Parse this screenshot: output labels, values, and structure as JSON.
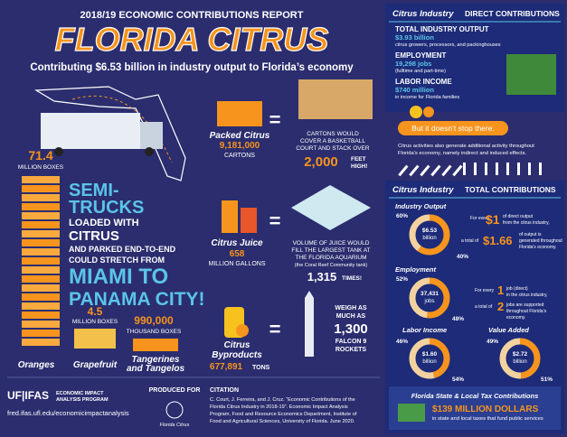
{
  "header": {
    "report": "2018/19 ECONOMIC CONTRIBUTIONS REPORT",
    "title": "FLORIDA CITRUS",
    "subtitle": "Contributing $6.53 billion in industry output to Florida’s economy"
  },
  "production": {
    "oranges": {
      "amount": "71.4",
      "unit": "MILLION BOXES",
      "label": "Oranges"
    },
    "trucks": [
      "SEMI-",
      "TRUCKS",
      "LOADED WITH",
      "CITRUS",
      "AND PARKED END-TO-END",
      "COULD STRETCH FROM",
      "MIAMI TO",
      "PANAMA CITY!"
    ],
    "grapefruit": {
      "amount": "4.5",
      "unit": "MILLION BOXES",
      "label": "Grapefruit"
    },
    "tangerines": {
      "amount": "990,000",
      "unit": "THOUSAND BOXES",
      "label": [
        "Tangerines",
        "and Tangelos"
      ]
    }
  },
  "products": {
    "packed": {
      "label": "Packed Citrus",
      "amount": "9,181,000",
      "unit": "CARTONS",
      "compare": [
        "CARTONS WOULD",
        "COVER A BASKETBALL",
        "COURT AND STACK OVER"
      ],
      "big": "2,000",
      "after": [
        "FEET",
        "HIGH!"
      ]
    },
    "juice": {
      "label": "Citrus Juice",
      "amount": "658",
      "unit": "MILLION GALLONS",
      "compare": [
        "VOLUME OF JUICE WOULD",
        "FILL THE LARGEST TANK AT",
        "THE FLORIDA AQUARIUM",
        "(the Coral Reef Community tank)"
      ],
      "big": "1,315",
      "after": "TIMES!"
    },
    "byproducts": {
      "label": [
        "Citrus",
        "Byproducts"
      ],
      "amount": "677,891",
      "unit": "TONS",
      "compare": [
        "WEIGH AS",
        "MUCH AS"
      ],
      "big": "1,300",
      "after": [
        "FALCON 9",
        "ROCKETS"
      ]
    },
    "equals": "="
  },
  "footer": {
    "logo": "UF|IFAS",
    "program": [
      "ECONOMIC IMPACT",
      "ANALYSIS PROGRAM"
    ],
    "url": "fred.ifas.ufl.edu/economicimpactanalysis",
    "produced_for": "PRODUCED FOR",
    "partner": "Florida Citrus",
    "citation_title": "CITATION",
    "citation": [
      "C. Court, J. Ferreira, and J. Cruz. “Economic Contributions of the",
      "Florida Citrus Industry in 2018-19”. Economic Impact Analysis",
      "Program, Food and Resource Economics Department, Institute of",
      "Food and Agricultural Sciences, University of Florida. June 2020."
    ]
  },
  "direct": {
    "title_a": "Citrus Industry",
    "title_b": "DIRECT CONTRIBUTIONS",
    "items": [
      {
        "label": "TOTAL INDUSTRY OUTPUT",
        "value": "$3.93 billion",
        "note": "citrus growers, processors, and packinghouses"
      },
      {
        "label": "EMPLOYMENT",
        "value": "19,298 jobs",
        "note": "(fulltime and part-time)"
      },
      {
        "label": "LABOR INCOME",
        "value": "$740 million",
        "note": "in income for Florida families"
      }
    ],
    "more": "But it doesn’t stop there.",
    "more_text": [
      "Citrus activities also generate additional activity throughout",
      "Florida’s economy, namely indirect and induced effects."
    ]
  },
  "total": {
    "title_a": "Citrus Industry",
    "title_b": "TOTAL CONTRIBUTIONS",
    "industry_output": {
      "label": "Industry Output",
      "center": [
        "$6.53",
        "billion"
      ],
      "shares": [
        {
          "value": 60,
          "label": "60%"
        },
        {
          "value": 40,
          "label": "40%"
        }
      ],
      "explain": {
        "a": "For every",
        "b": "$1",
        "c": [
          "of direct output",
          "from the citrus industry,"
        ],
        "d": "a total of",
        "e": "$1.66",
        "f": [
          "of output is",
          "generated throughout",
          "Florida’s economy."
        ]
      }
    },
    "employment": {
      "label": "Employment",
      "center": [
        "37,431",
        "jobs"
      ],
      "shares": [
        {
          "value": 52,
          "label": "52%"
        },
        {
          "value": 48,
          "label": "48%"
        }
      ],
      "explain": {
        "a": "For every",
        "b": "1",
        "c": [
          "job (direct)",
          "in the citrus industry,"
        ],
        "d": "a total of",
        "e": "2",
        "f": [
          "jobs are supported",
          "throughout Florida’s",
          "economy."
        ]
      }
    },
    "labor_income": {
      "label": "Labor Income",
      "center": [
        "$1.60",
        "billion"
      ],
      "shares": [
        {
          "value": 46,
          "label": "46%"
        },
        {
          "value": 54,
          "label": "54%"
        }
      ]
    },
    "value_added": {
      "label": "Value Added",
      "center": [
        "$2.72",
        "billion"
      ],
      "shares": [
        {
          "value": 49,
          "label": "49%"
        },
        {
          "value": 51,
          "label": "51%"
        }
      ]
    },
    "tax": {
      "title": "Florida State & Local Tax Contributions",
      "value": "$139 MILLION DOLLARS",
      "note": "in state and local taxes that fund public services"
    }
  }
}
